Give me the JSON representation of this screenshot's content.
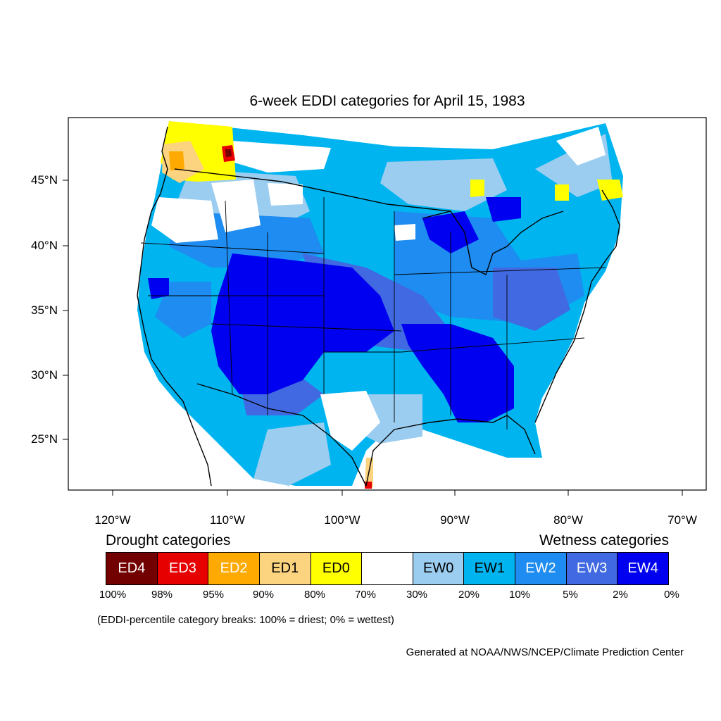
{
  "title": "6-week EDDI categories for April 15, 1983",
  "lat_labels": [
    "45°N",
    "40°N",
    "35°N",
    "30°N",
    "25°N"
  ],
  "lon_labels": [
    "120°W",
    "110°W",
    "100°W",
    "90°W",
    "80°W",
    "70°W"
  ],
  "legend": {
    "drought_heading": "Drought categories",
    "wetness_heading": "Wetness categories",
    "categories": [
      {
        "label": "ED4",
        "color": "#730000",
        "text_color": "#ffffff"
      },
      {
        "label": "ED3",
        "color": "#e60000",
        "text_color": "#ffffff"
      },
      {
        "label": "ED2",
        "color": "#ffaa00",
        "text_color": "#ffffff"
      },
      {
        "label": "ED1",
        "color": "#fcd37f",
        "text_color": "#000000"
      },
      {
        "label": "ED0",
        "color": "#ffff00",
        "text_color": "#000000"
      },
      {
        "label": "",
        "color": "#ffffff",
        "text_color": "#000000"
      },
      {
        "label": "EW0",
        "color": "#9bcdf0",
        "text_color": "#000000"
      },
      {
        "label": "EW1",
        "color": "#00b4f0",
        "text_color": "#000000"
      },
      {
        "label": "EW2",
        "color": "#1e8cf0",
        "text_color": "#ffffff"
      },
      {
        "label": "EW3",
        "color": "#4169e1",
        "text_color": "#ffffff"
      },
      {
        "label": "EW4",
        "color": "#0000f0",
        "text_color": "#ffffff"
      }
    ],
    "breaks": [
      "100%",
      "98%",
      "95%",
      "90%",
      "80%",
      "70%",
      "30%",
      "20%",
      "10%",
      "5%",
      "2%",
      "0%"
    ]
  },
  "breaks_note": "(EDDI-percentile category breaks: 100% = driest; 0% = wettest)",
  "credit": "Generated at NOAA/NWS/NCEP/Climate Prediction Center"
}
